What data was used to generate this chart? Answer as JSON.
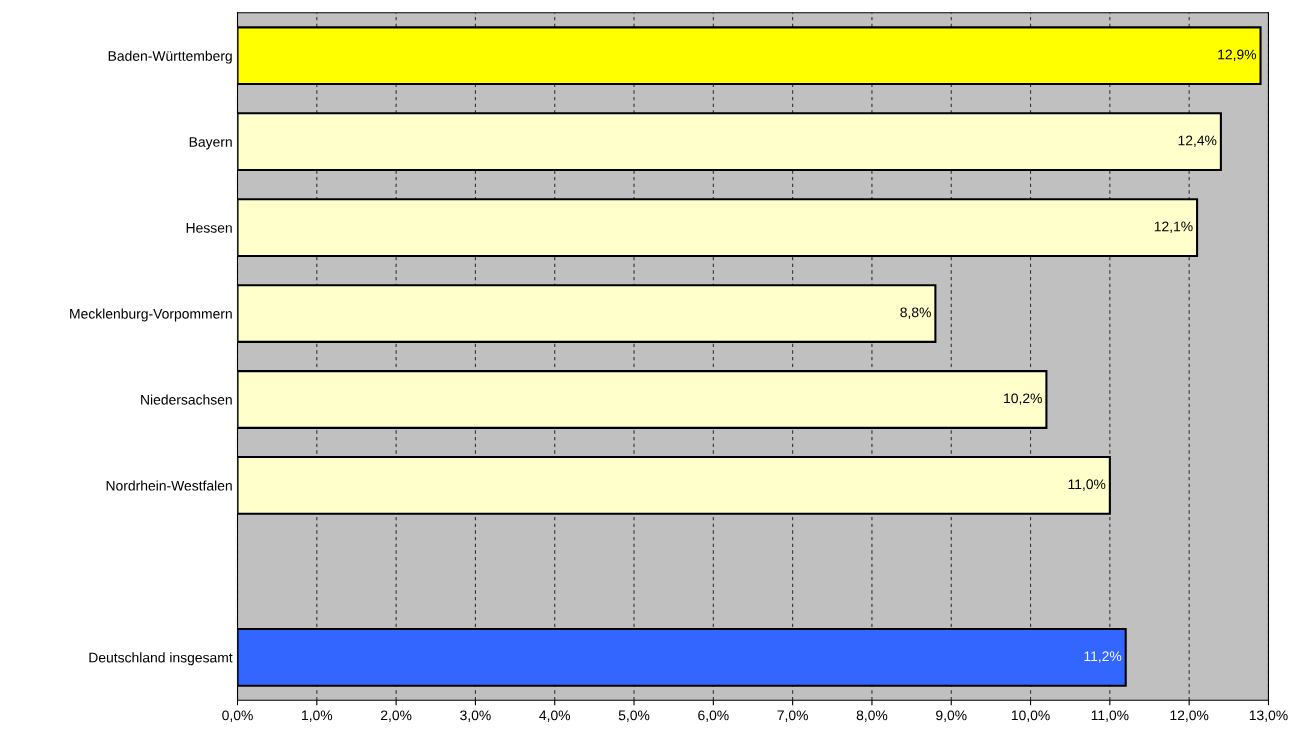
{
  "chart_data": {
    "type": "bar",
    "orientation": "horizontal",
    "categories": [
      "Baden-Württemberg",
      "Bayern",
      "Hessen",
      "Mecklenburg-Vorpommern",
      "Niedersachsen",
      "Nordrhein-Westfalen",
      null,
      "Deutschland insgesamt"
    ],
    "values": [
      12.9,
      12.4,
      12.1,
      8.8,
      10.2,
      11.0,
      null,
      11.2
    ],
    "colors": [
      "#ffff00",
      "#ffffcc",
      "#ffffcc",
      "#ffffcc",
      "#ffffcc",
      "#ffffcc",
      "#ffffcc",
      "#3366ff"
    ],
    "value_labels": [
      "12,9%",
      "12,4%",
      "12,1%",
      "8,8%",
      "10,2%",
      "11,0%",
      null,
      "11,2%"
    ],
    "xlim": [
      0,
      13
    ],
    "xticks": [
      {
        "value": 0,
        "label": "0,0%"
      },
      {
        "value": 1,
        "label": "1,0%"
      },
      {
        "value": 2,
        "label": "2,0%"
      },
      {
        "value": 3,
        "label": "3,0%"
      },
      {
        "value": 4,
        "label": "4,0%"
      },
      {
        "value": 5,
        "label": "5,0%"
      },
      {
        "value": 6,
        "label": "6,0%"
      },
      {
        "value": 7,
        "label": "7,0%"
      },
      {
        "value": 8,
        "label": "8,0%"
      },
      {
        "value": 9,
        "label": "9,0%"
      },
      {
        "value": 10,
        "label": "10,0%"
      },
      {
        "value": 11,
        "label": "11,0%"
      },
      {
        "value": 12,
        "label": "12,0%"
      },
      {
        "value": 13,
        "label": "13,0%"
      }
    ],
    "grid": "x"
  }
}
